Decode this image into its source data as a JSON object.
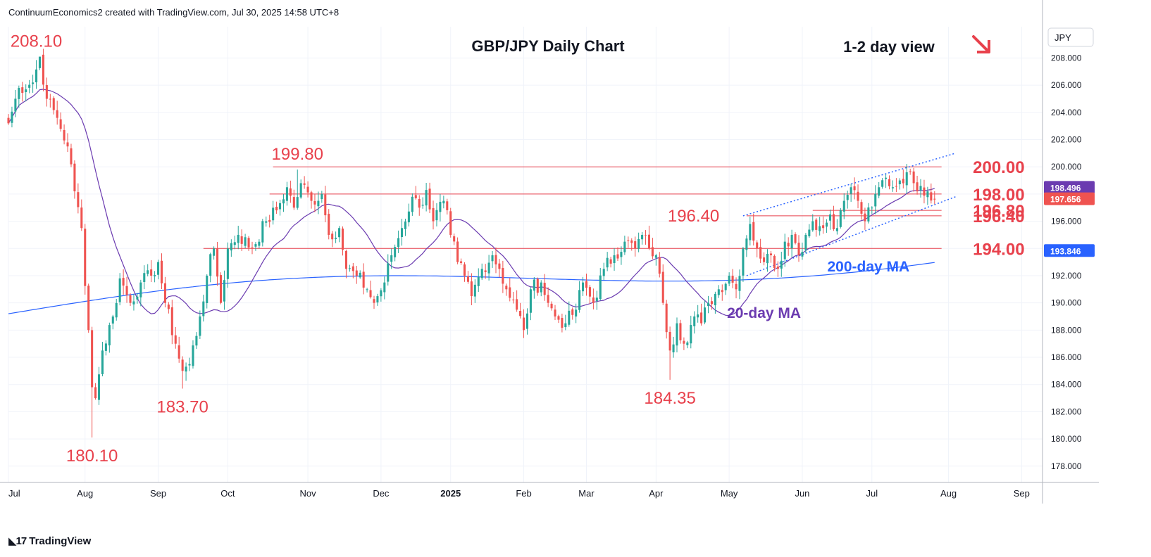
{
  "header": {
    "attribution": "ContinuumEconomics2 created with TradingView.com, Jul 30, 2025 14:58 UTC+8"
  },
  "footer": {
    "brand": "TradingView",
    "logo_icon": "tradingview-logo-icon"
  },
  "colors": {
    "up": "#26a69a",
    "down": "#ef5350",
    "level": "#e8414c",
    "ma20": "#6b3bb0",
    "ma200": "#2962ff",
    "channel": "#2962ff",
    "grid": "#f0f3fa",
    "axis_text": "#131722"
  },
  "chart_data": {
    "type": "candlestick",
    "title": "GBP/JPY Daily Chart",
    "view_label": "1-2 day view",
    "view_icon": "down-right-arrow-icon",
    "currency": "JPY",
    "ylim": [
      176.8,
      210.3
    ],
    "y_ticks": [
      "178.000",
      "180.000",
      "182.000",
      "184.000",
      "186.000",
      "188.000",
      "190.000",
      "192.000",
      "194.000",
      "196.000",
      "198.000",
      "200.000",
      "202.000",
      "204.000",
      "206.000",
      "208.000"
    ],
    "x_ticks": [
      {
        "label": "Jul",
        "day": 0
      },
      {
        "label": "Aug",
        "day": 22
      },
      {
        "label": "Sep",
        "day": 43
      },
      {
        "label": "Oct",
        "day": 63
      },
      {
        "label": "Nov",
        "day": 86
      },
      {
        "label": "Dec",
        "day": 107
      },
      {
        "label": "2025",
        "day": 127,
        "bold": true
      },
      {
        "label": "Feb",
        "day": 148
      },
      {
        "label": "Mar",
        "day": 166
      },
      {
        "label": "Apr",
        "day": 186
      },
      {
        "label": "May",
        "day": 207
      },
      {
        "label": "Jun",
        "day": 228
      },
      {
        "label": "Jul",
        "day": 248
      },
      {
        "label": "Aug",
        "day": 270
      },
      {
        "label": "Sep",
        "day": 291
      }
    ],
    "price_labels": [
      {
        "name": "ma20-price-tag",
        "value": 198.496,
        "text": "198.496",
        "color": "#6b3bb0"
      },
      {
        "name": "last-price-tag",
        "value": 197.656,
        "text": "197.656",
        "color": "#ef5350"
      },
      {
        "name": "ma200-price-tag",
        "value": 193.846,
        "text": "193.846",
        "color": "#2962ff"
      }
    ],
    "levels": [
      {
        "value": 200.0,
        "text": "200.00",
        "from_day": 76
      },
      {
        "value": 198.0,
        "text": "198.00",
        "from_day": 75
      },
      {
        "value": 196.8,
        "text": "196.80",
        "from_day": 231
      },
      {
        "value": 196.4,
        "text": "196.40",
        "from_day": 212
      },
      {
        "value": 194.0,
        "text": "194.00",
        "from_day": 56
      }
    ],
    "annotations": [
      {
        "text": "208.10",
        "day": 8,
        "price": 208.1,
        "pos": "above"
      },
      {
        "text": "180.10",
        "day": 24,
        "price": 180.1,
        "pos": "below"
      },
      {
        "text": "183.70",
        "day": 50,
        "price": 183.7,
        "pos": "below"
      },
      {
        "text": "199.80",
        "day": 83,
        "price": 199.8,
        "pos": "above"
      },
      {
        "text": "184.35",
        "day": 190,
        "price": 184.35,
        "pos": "below"
      },
      {
        "text": "196.40",
        "day": 205,
        "price": 196.4,
        "pos": "left"
      }
    ],
    "ma_labels": [
      {
        "text": "200-day MA",
        "day": 247,
        "price": 192.3,
        "color": "#2962ff"
      },
      {
        "text": "20-day MA",
        "day": 217,
        "price": 188.9,
        "color": "#6b3bb0"
      }
    ],
    "channel": {
      "upper": [
        [
          211,
          196.4
        ],
        [
          272,
          201.0
        ]
      ],
      "lower": [
        [
          212,
          192.0
        ],
        [
          272,
          197.8
        ]
      ]
    },
    "anchors": [
      [
        0,
        203.2
      ],
      [
        3,
        205.8
      ],
      [
        7,
        206.2
      ],
      [
        9,
        208.1
      ],
      [
        11,
        205.0
      ],
      [
        14,
        203.6
      ],
      [
        17,
        201.5
      ],
      [
        19,
        198.2
      ],
      [
        21,
        195.5
      ],
      [
        23,
        188.0
      ],
      [
        24,
        183.8
      ],
      [
        25,
        183.0
      ],
      [
        27,
        186.5
      ],
      [
        30,
        189.0
      ],
      [
        32,
        191.8
      ],
      [
        35,
        190.0
      ],
      [
        38,
        191.5
      ],
      [
        41,
        192.0
      ],
      [
        43,
        193.0
      ],
      [
        45,
        190.0
      ],
      [
        48,
        187.0
      ],
      [
        50,
        185.0
      ],
      [
        52,
        185.5
      ],
      [
        55,
        189.0
      ],
      [
        57,
        192.0
      ],
      [
        59,
        194.0
      ],
      [
        61,
        190.0
      ],
      [
        63,
        194.0
      ],
      [
        66,
        195.0
      ],
      [
        70,
        194.0
      ],
      [
        74,
        196.0
      ],
      [
        77,
        196.8
      ],
      [
        80,
        198.5
      ],
      [
        82,
        197.0
      ],
      [
        84,
        198.8
      ],
      [
        87,
        197.5
      ],
      [
        90,
        198.0
      ],
      [
        92,
        195.0
      ],
      [
        95,
        195.5
      ],
      [
        97,
        192.5
      ],
      [
        100,
        192.0
      ],
      [
        103,
        191.0
      ],
      [
        105,
        190.0
      ],
      [
        108,
        191.5
      ],
      [
        110,
        193.5
      ],
      [
        113,
        195.5
      ],
      [
        116,
        197.8
      ],
      [
        118,
        197.0
      ],
      [
        120,
        198.3
      ],
      [
        122,
        196.0
      ],
      [
        125,
        197.5
      ],
      [
        127,
        195.0
      ],
      [
        129,
        193.0
      ],
      [
        131,
        192.0
      ],
      [
        133,
        190.5
      ],
      [
        136,
        192.5
      ],
      [
        139,
        193.5
      ],
      [
        141,
        192.5
      ],
      [
        143,
        191.0
      ],
      [
        146,
        189.5
      ],
      [
        148,
        188.0
      ],
      [
        150,
        191.0
      ],
      [
        153,
        191.5
      ],
      [
        155,
        190.0
      ],
      [
        157,
        189.0
      ],
      [
        160,
        188.5
      ],
      [
        163,
        189.5
      ],
      [
        165,
        191.5
      ],
      [
        168,
        190.0
      ],
      [
        171,
        192.5
      ],
      [
        174,
        193.5
      ],
      [
        177,
        194.5
      ],
      [
        180,
        194.0
      ],
      [
        182,
        195.0
      ],
      [
        184,
        194.0
      ],
      [
        186,
        193.5
      ],
      [
        188,
        190.0
      ],
      [
        190,
        186.5
      ],
      [
        192,
        188.5
      ],
      [
        194,
        187.0
      ],
      [
        197,
        189.0
      ],
      [
        199,
        188.5
      ],
      [
        201,
        190.0
      ],
      [
        204,
        191.0
      ],
      [
        207,
        192.0
      ],
      [
        209,
        191.0
      ],
      [
        211,
        194.0
      ],
      [
        213,
        195.8
      ],
      [
        215,
        194.0
      ],
      [
        217,
        193.0
      ],
      [
        219,
        193.5
      ],
      [
        221,
        192.5
      ],
      [
        223,
        194.5
      ],
      [
        225,
        195.0
      ],
      [
        227,
        193.5
      ],
      [
        229,
        195.0
      ],
      [
        231,
        196.0
      ],
      [
        234,
        195.5
      ],
      [
        236,
        196.5
      ],
      [
        238,
        195.5
      ],
      [
        240,
        197.5
      ],
      [
        242,
        198.5
      ],
      [
        244,
        197.5
      ],
      [
        246,
        196.0
      ],
      [
        248,
        197.0
      ],
      [
        250,
        198.5
      ],
      [
        252,
        199.2
      ],
      [
        254,
        198.5
      ],
      [
        256,
        199.0
      ],
      [
        258,
        199.6
      ],
      [
        260,
        198.8
      ],
      [
        262,
        198.6
      ],
      [
        264,
        198.2
      ],
      [
        266,
        197.6
      ]
    ],
    "ma_style": {
      "ma20_window": 20,
      "ma200_window": 200
    }
  }
}
